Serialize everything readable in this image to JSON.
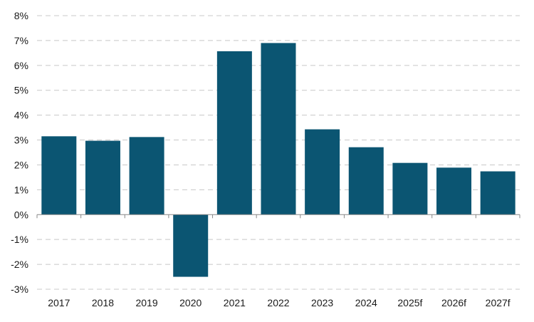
{
  "chart_data": {
    "type": "bar",
    "title": "",
    "xlabel": "",
    "ylabel": "",
    "categories": [
      "2017",
      "2018",
      "2019",
      "2020",
      "2021",
      "2022",
      "2023",
      "2024",
      "2025f",
      "2026f",
      "2027f"
    ],
    "values": [
      3.15,
      2.97,
      3.12,
      -2.5,
      6.57,
      6.9,
      3.43,
      2.71,
      2.08,
      1.89,
      1.74
    ],
    "ylim": [
      -3,
      8
    ],
    "yticks": [
      8,
      7,
      6,
      5,
      4,
      3,
      2,
      1,
      0,
      -1,
      -2,
      -3
    ],
    "ytick_labels": [
      "8%",
      "7%",
      "6%",
      "5%",
      "4%",
      "3%",
      "2%",
      "1%",
      "0%",
      "-1%",
      "-2%",
      "-3%"
    ],
    "grid": true,
    "legend": "none",
    "bar_color": "#0b5572",
    "grid_color": "#c8c8c8"
  }
}
